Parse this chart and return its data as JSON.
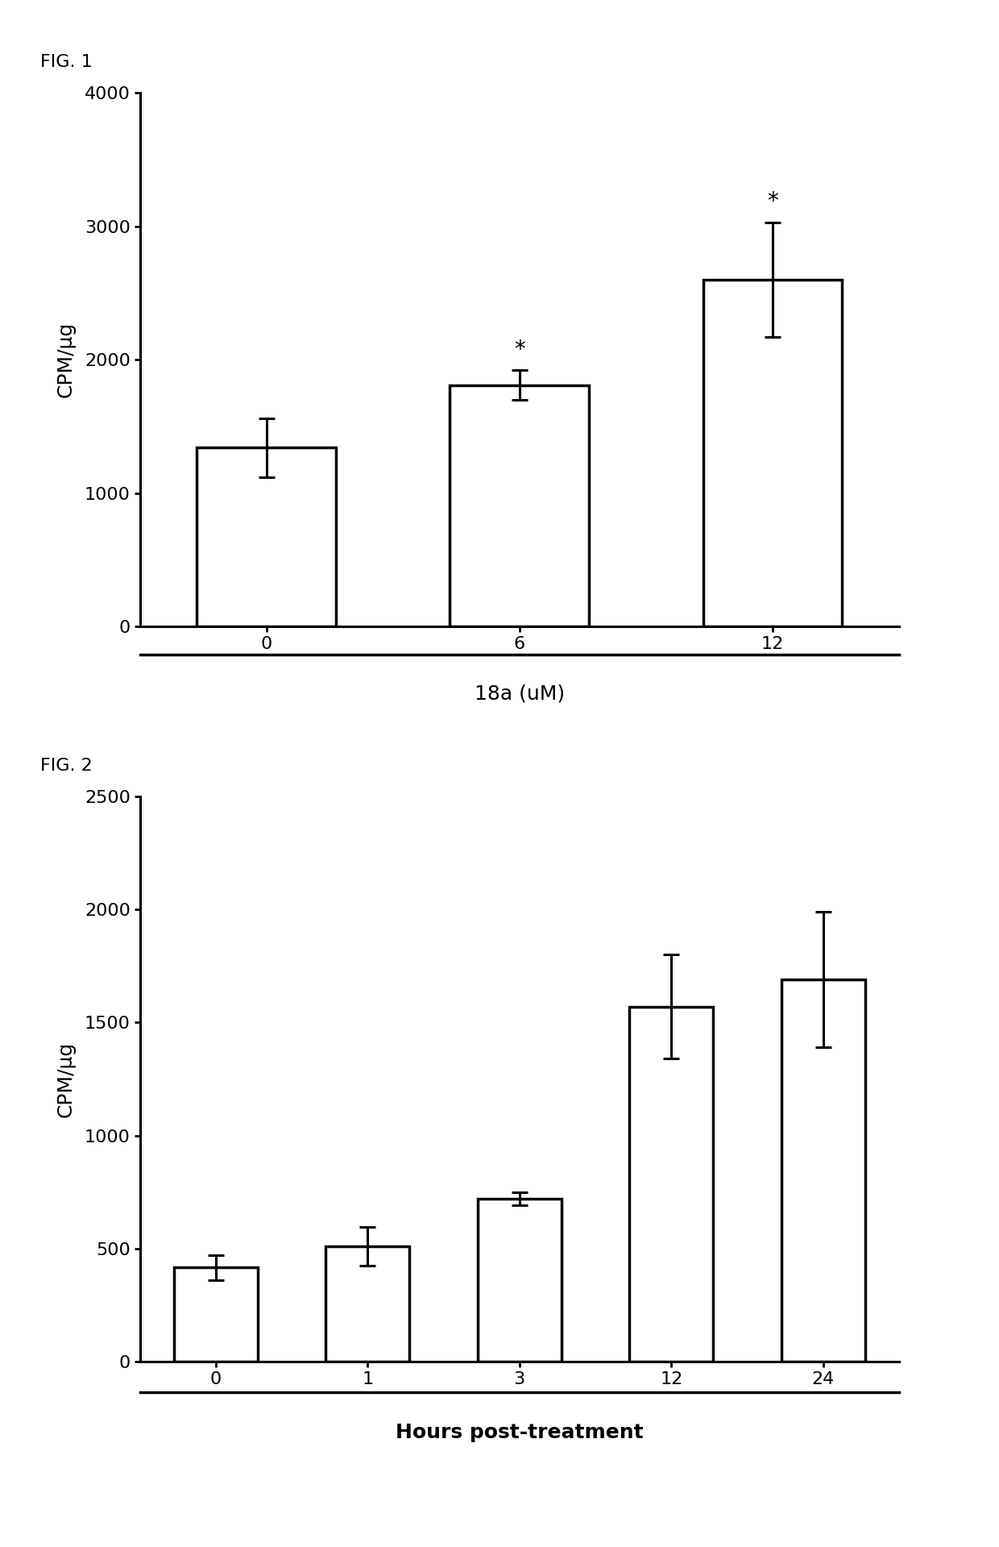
{
  "fig1": {
    "title": "FIG. 1",
    "categories": [
      "0",
      "6",
      "12"
    ],
    "values": [
      1340,
      1810,
      2600
    ],
    "errors": [
      220,
      110,
      430
    ],
    "xlabel": "18a (uM)",
    "ylabel": "CPM/μg",
    "ylim": [
      0,
      4000
    ],
    "yticks": [
      0,
      1000,
      2000,
      3000,
      4000
    ],
    "sig_markers": [
      false,
      true,
      true
    ],
    "bar_color": "#ffffff",
    "bar_edgecolor": "#000000",
    "bar_linewidth": 2.5
  },
  "fig2": {
    "title": "FIG. 2",
    "categories": [
      "0",
      "1",
      "3",
      "12",
      "24"
    ],
    "values": [
      415,
      510,
      720,
      1570,
      1690
    ],
    "errors": [
      55,
      85,
      30,
      230,
      300
    ],
    "xlabel": "Hours post-treatment",
    "ylabel": "CPM/μg",
    "ylim": [
      0,
      2500
    ],
    "yticks": [
      0,
      500,
      1000,
      1500,
      2000,
      2500
    ],
    "bar_color": "#ffffff",
    "bar_edgecolor": "#000000",
    "bar_linewidth": 2.5
  },
  "background_color": "#ffffff",
  "fig_label_fontsize": 16,
  "axis_label_fontsize": 18,
  "tick_fontsize": 16,
  "bar_width": 0.55,
  "capsize": 7,
  "errorbar_linewidth": 2.2,
  "sig_marker": "*",
  "sig_fontsize": 20
}
